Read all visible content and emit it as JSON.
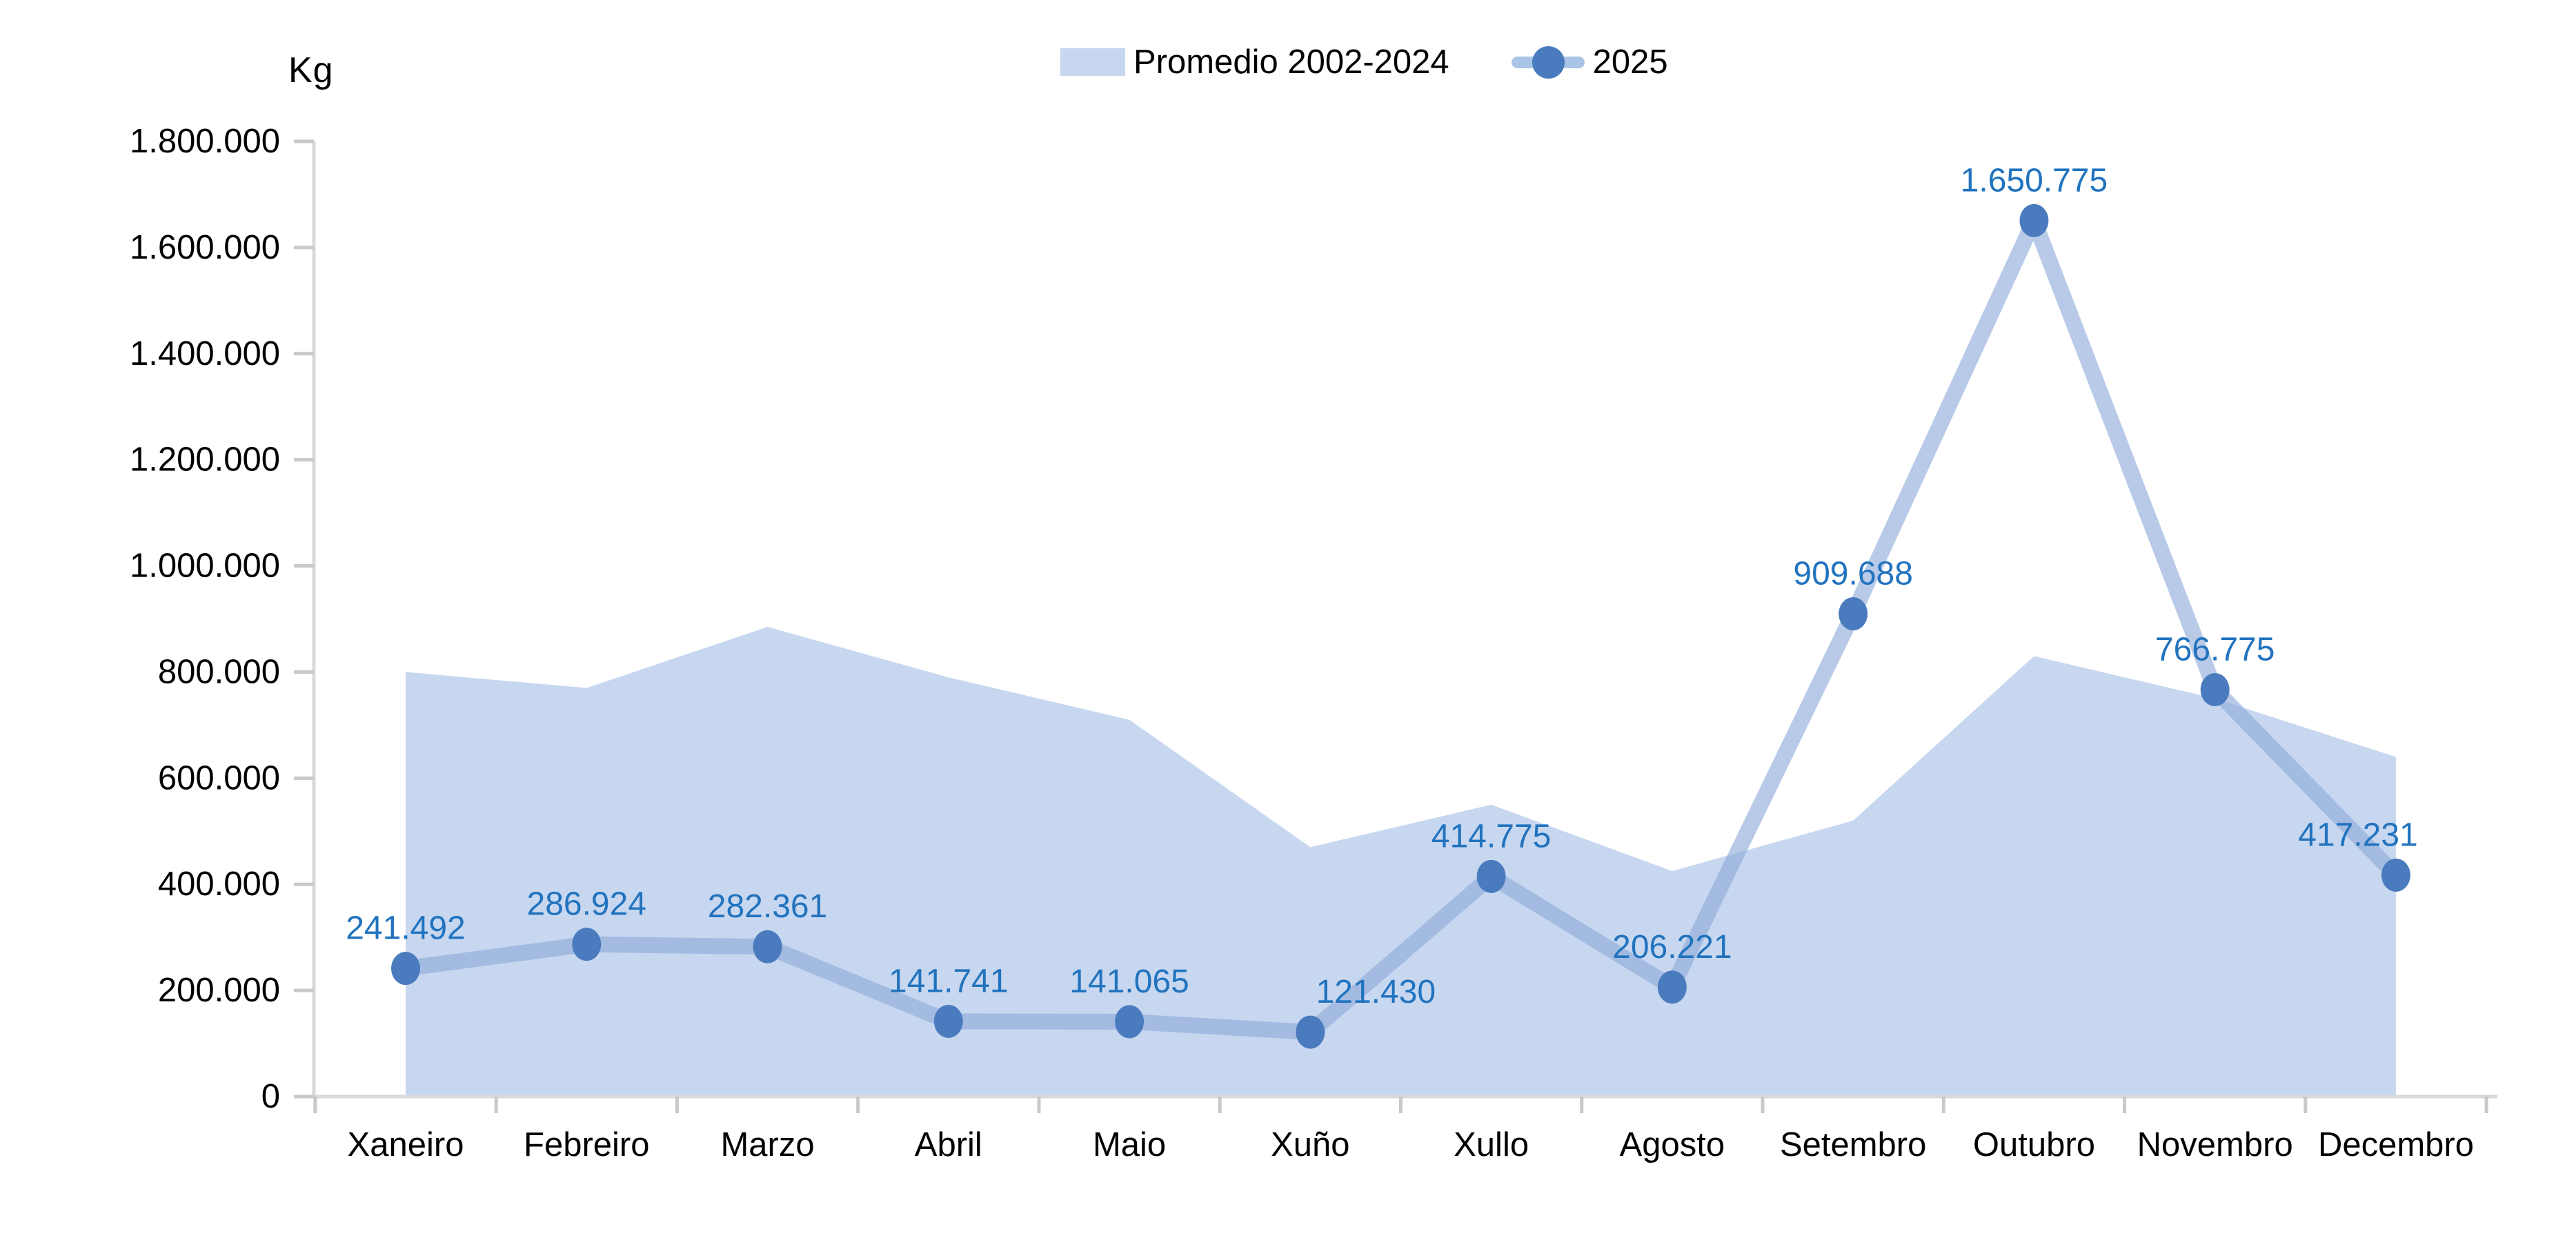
{
  "colors": {
    "area_fill": "#C7D7F0",
    "line": "#8CAAD9",
    "line_opacity": 0.62,
    "marker": "#4A7BBE",
    "data_label": "#2173BE",
    "axis_line": "#D9D9D9",
    "tick": "#C9C9C9",
    "axis_text": "#000000"
  },
  "chart_data": {
    "type": "line",
    "title": "",
    "ylabel": "Kg",
    "xlabel": "",
    "grid": false,
    "legend_position": "top-center",
    "ylim": [
      0,
      1800000
    ],
    "ytick_step": 200000,
    "ytick_labels": [
      "0",
      "200.000",
      "400.000",
      "600.000",
      "800.000",
      "1.000.000",
      "1.200.000",
      "1.400.000",
      "1.600.000",
      "1.800.000"
    ],
    "categories": [
      "Xaneiro",
      "Febreiro",
      "Marzo",
      "Abril",
      "Maio",
      "Xuño",
      "Xullo",
      "Agosto",
      "Setembro",
      "Outubro",
      "Novembro",
      "Decembro"
    ],
    "series": [
      {
        "name": "Promedio 2002-2024",
        "type": "area",
        "values": [
          800000,
          770000,
          885000,
          790000,
          710000,
          470000,
          550000,
          425000,
          520000,
          830000,
          750000,
          640000
        ]
      },
      {
        "name": "2025",
        "type": "line",
        "values": [
          241492,
          286924,
          282361,
          141741,
          141065,
          121430,
          414775,
          206221,
          909688,
          1650775,
          766775,
          417231
        ],
        "data_labels": [
          "241.492",
          "286.924",
          "282.361",
          "141.741",
          "141.065",
          "121.430",
          "414.775",
          "206.221",
          "909.688",
          "1.650.775",
          "766.775",
          "417.231"
        ]
      }
    ]
  }
}
